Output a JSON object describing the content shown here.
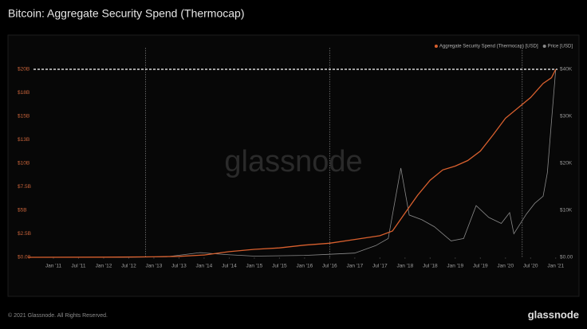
{
  "chart_data": {
    "type": "line",
    "title": "Bitcoin: Aggregate Security Spend (Thermocap)",
    "watermark": "glassnode",
    "footer": "© 2021 Glassnode. All Rights Reserved.",
    "logo": "glassnode",
    "legend": "top-right",
    "xlim": [
      "2010-07",
      "2021-02"
    ],
    "xticks": [
      {
        "value": "2011-01",
        "label": "Jan '11"
      },
      {
        "value": "2011-07",
        "label": "Jul '11"
      },
      {
        "value": "2012-01",
        "label": "Jan '12"
      },
      {
        "value": "2012-07",
        "label": "Jul '12"
      },
      {
        "value": "2013-01",
        "label": "Jan '13"
      },
      {
        "value": "2013-07",
        "label": "Jul '13"
      },
      {
        "value": "2014-01",
        "label": "Jan '14"
      },
      {
        "value": "2014-07",
        "label": "Jul '14"
      },
      {
        "value": "2015-01",
        "label": "Jan '15"
      },
      {
        "value": "2015-07",
        "label": "Jul '15"
      },
      {
        "value": "2016-01",
        "label": "Jan '16"
      },
      {
        "value": "2016-07",
        "label": "Jul '16"
      },
      {
        "value": "2017-01",
        "label": "Jan '17"
      },
      {
        "value": "2017-07",
        "label": "Jul '17"
      },
      {
        "value": "2018-01",
        "label": "Jan '18"
      },
      {
        "value": "2018-07",
        "label": "Jul '18"
      },
      {
        "value": "2019-01",
        "label": "Jan '19"
      },
      {
        "value": "2019-07",
        "label": "Jul '19"
      },
      {
        "value": "2020-01",
        "label": "Jan '20"
      },
      {
        "value": "2020-07",
        "label": "Jul '20"
      },
      {
        "value": "2021-01",
        "label": "Jan '21"
      }
    ],
    "ylim": [
      0,
      20000000000
    ],
    "yticks": [
      {
        "value": 0,
        "label": "$0.00"
      },
      {
        "value": 2500000000,
        "label": "$2.5B"
      },
      {
        "value": 5000000000,
        "label": "$5B"
      },
      {
        "value": 7500000000,
        "label": "$7.5B"
      },
      {
        "value": 10000000000,
        "label": "$10B"
      },
      {
        "value": 12500000000,
        "label": "$13B"
      },
      {
        "value": 15000000000,
        "label": "$15B"
      },
      {
        "value": 17500000000,
        "label": "$18B"
      },
      {
        "value": 20000000000,
        "label": "$20B"
      }
    ],
    "y2lim": [
      0,
      40000
    ],
    "y2ticks": [
      {
        "value": 0,
        "label": "$0.00"
      },
      {
        "value": 10000,
        "label": "$10K"
      },
      {
        "value": 20000,
        "label": "$20K"
      },
      {
        "value": 30000,
        "label": "$30K"
      },
      {
        "value": 40000,
        "label": "$40K"
      }
    ],
    "vlines": [
      "2012-11",
      "2016-07",
      "2020-05"
    ],
    "hline": 20000000000,
    "series": [
      {
        "name": "Aggregate Security Spend (Thermocap) [USD]",
        "color": "#d9602e",
        "x": [
          "2010-07",
          "2012-01",
          "2013-01",
          "2013-07",
          "2014-01",
          "2014-07",
          "2015-01",
          "2015-07",
          "2016-01",
          "2016-07",
          "2017-01",
          "2017-07",
          "2017-10",
          "2018-01",
          "2018-04",
          "2018-07",
          "2018-10",
          "2019-01",
          "2019-04",
          "2019-07",
          "2019-10",
          "2020-01",
          "2020-07",
          "2020-10",
          "2020-12",
          "2021-01"
        ],
        "values": [
          0,
          20000000,
          50000000,
          100000000,
          250000000,
          600000000,
          850000000,
          1000000000,
          1300000000,
          1500000000,
          1900000000,
          2300000000,
          2800000000,
          4700000000,
          6600000000,
          8200000000,
          9300000000,
          9700000000,
          10300000000,
          11300000000,
          13000000000,
          14800000000,
          17000000000,
          18500000000,
          19100000000,
          20000000000
        ]
      },
      {
        "name": "Price [USD]",
        "color": "#8a8a8a",
        "axis": "y2",
        "x": [
          "2010-07",
          "2011-06",
          "2012-06",
          "2013-04",
          "2013-12",
          "2014-06",
          "2015-01",
          "2016-01",
          "2016-07",
          "2017-01",
          "2017-06",
          "2017-09",
          "2017-12",
          "2018-02",
          "2018-05",
          "2018-08",
          "2018-12",
          "2019-03",
          "2019-06",
          "2019-09",
          "2019-12",
          "2020-02",
          "2020-03",
          "2020-06",
          "2020-08",
          "2020-10",
          "2020-11",
          "2020-12",
          "2021-01"
        ],
        "values": [
          0.07,
          15,
          6,
          100,
          1000,
          600,
          250,
          400,
          650,
          900,
          2500,
          4000,
          19000,
          9000,
          8000,
          6500,
          3500,
          4000,
          11000,
          8500,
          7200,
          9500,
          5000,
          9200,
          11500,
          13000,
          18000,
          29000,
          40000
        ]
      }
    ]
  }
}
